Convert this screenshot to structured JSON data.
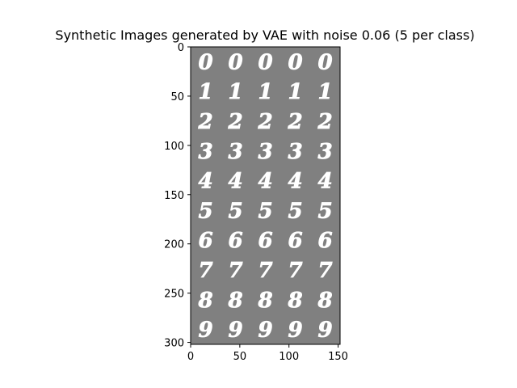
{
  "chart_data": {
    "type": "heatmap",
    "title": "Synthetic Images generated by VAE with noise 0.06 (5 per class)",
    "xlabel": "",
    "ylabel": "",
    "xlim": [
      0,
      152
    ],
    "ylim": [
      302,
      0
    ],
    "x_ticks": [
      "0",
      "50",
      "100",
      "150"
    ],
    "y_ticks": [
      "0",
      "50",
      "100",
      "150",
      "200",
      "250",
      "300"
    ],
    "x_tick_values": [
      0,
      50,
      100,
      150
    ],
    "y_tick_values": [
      0,
      50,
      100,
      150,
      200,
      250,
      300
    ],
    "grid": false,
    "rows": [
      "0",
      "1",
      "2",
      "3",
      "4",
      "5",
      "6",
      "7",
      "8",
      "9"
    ],
    "per_class": 5,
    "background_color": "#808080",
    "digit_color": "#ffffff"
  }
}
